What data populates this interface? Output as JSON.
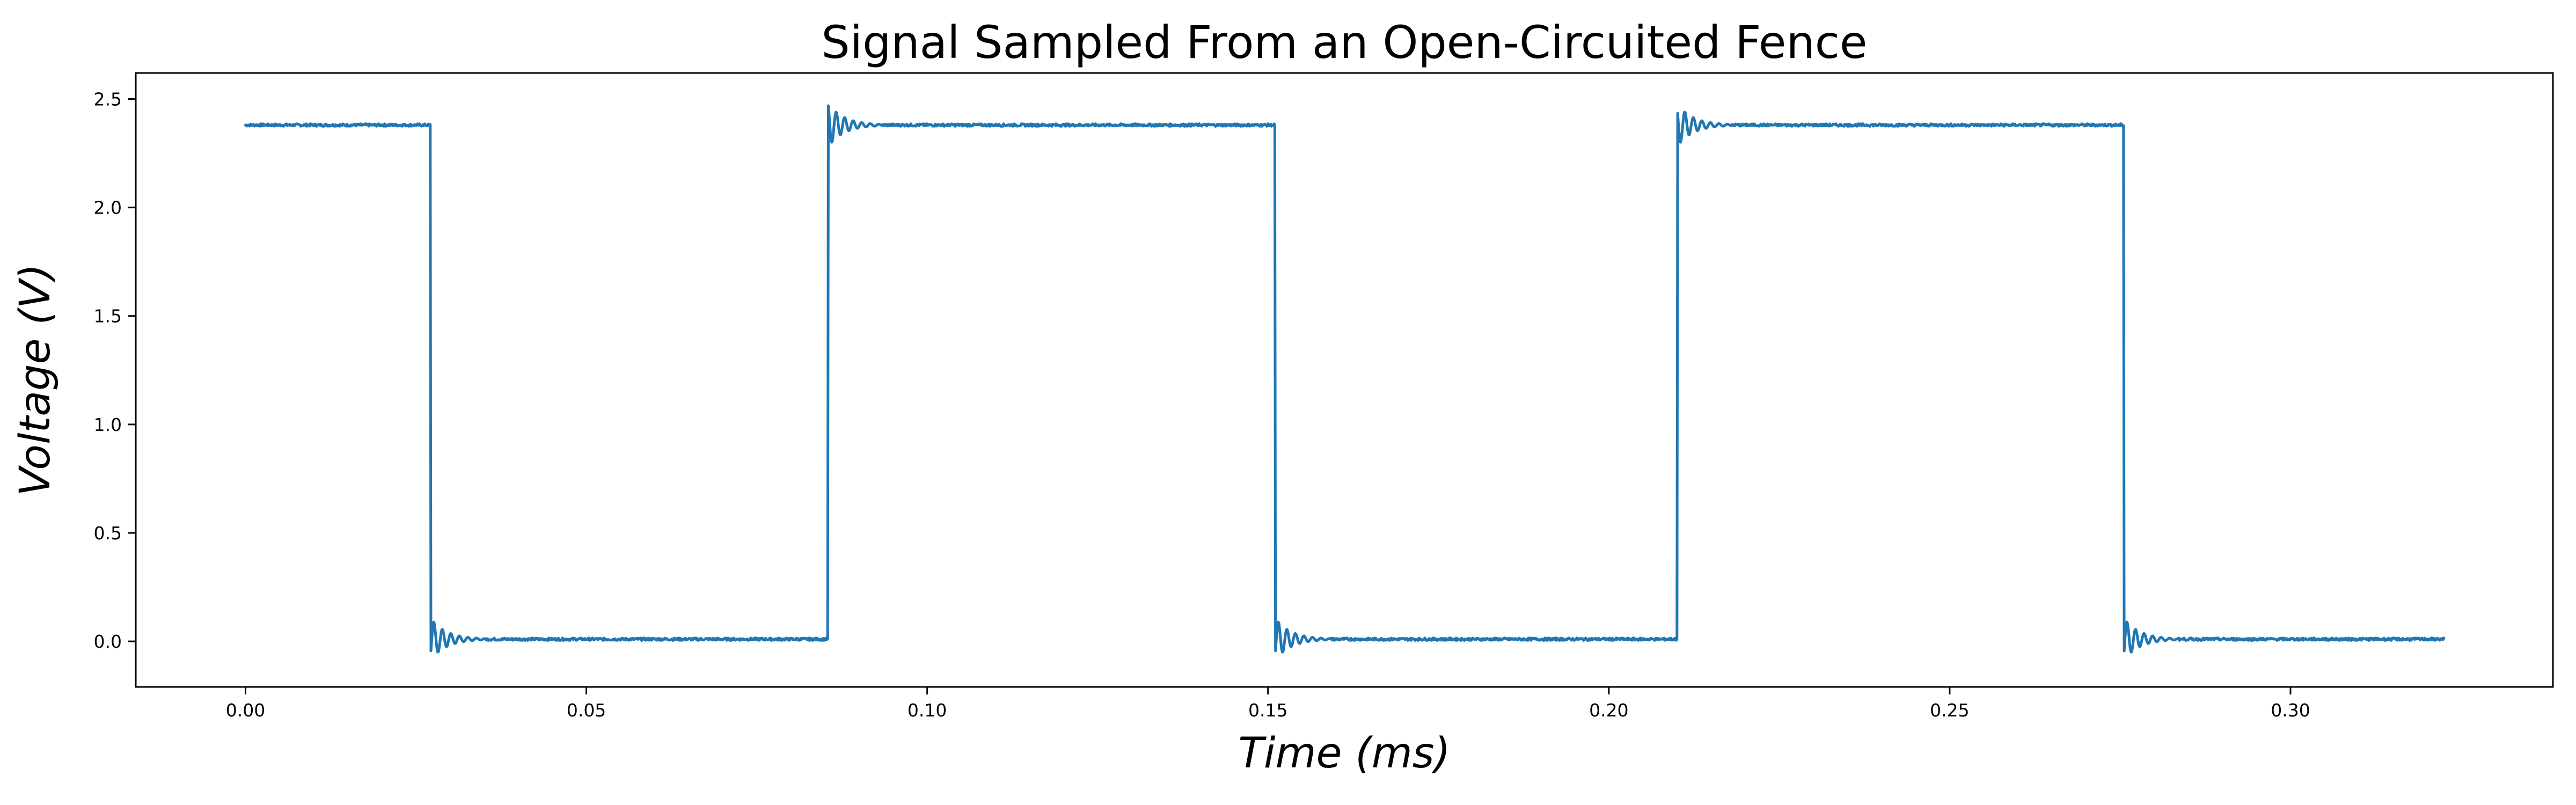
{
  "chart_data": {
    "type": "line",
    "title": "Signal Sampled From an Open-Circuited Fence",
    "xlabel": "Time (ms)",
    "ylabel": "Voltage (V)",
    "xlim": [
      -0.0161,
      0.3385
    ],
    "ylim": [
      -0.21,
      2.62
    ],
    "x_ticks": [
      0.0,
      0.05,
      0.1,
      0.15,
      0.2,
      0.25,
      0.3
    ],
    "x_tick_labels": [
      "0.00",
      "0.05",
      "0.10",
      "0.15",
      "0.20",
      "0.25",
      "0.30"
    ],
    "y_ticks": [
      0.0,
      0.5,
      1.0,
      1.5,
      2.0,
      2.5
    ],
    "y_tick_labels": [
      "0.0",
      "0.5",
      "1.0",
      "1.5",
      "2.0",
      "2.5"
    ],
    "grid": false,
    "legend": "none",
    "line_color": "#1f77b4",
    "series": [
      {
        "x_start": 0.0,
        "x_end": 0.3225,
        "high_level": 2.38,
        "low_level": 0.01,
        "transitions": [
          {
            "time": 0.0271,
            "direction": "fall"
          },
          {
            "time": 0.0855,
            "direction": "rise"
          },
          {
            "time": 0.151,
            "direction": "fall"
          },
          {
            "time": 0.21,
            "direction": "rise"
          },
          {
            "time": 0.2755,
            "direction": "fall"
          }
        ],
        "overshoot_peak": 0.1,
        "undershoot_peak": -0.09,
        "ringing_duration": 0.008
      }
    ]
  }
}
